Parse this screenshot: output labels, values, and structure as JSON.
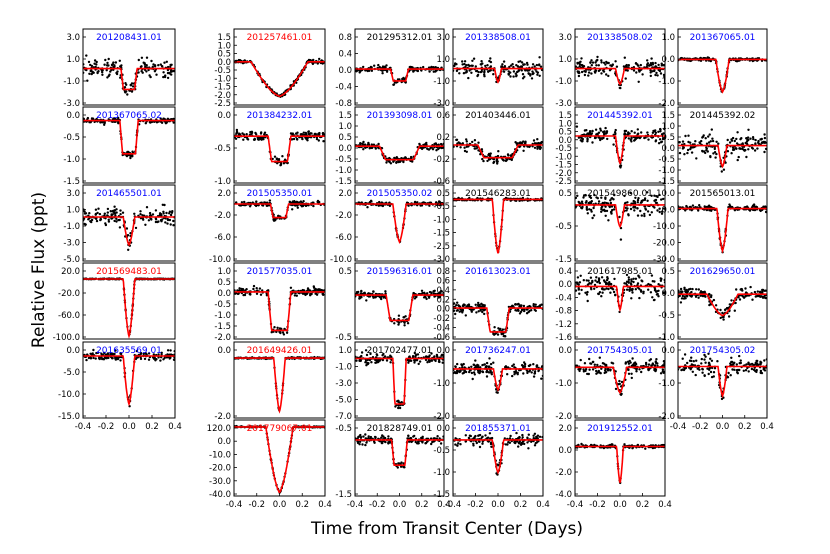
{
  "chart_data": {
    "type": "scatter",
    "xlabel": "Time from Transit Center (Days)",
    "ylabel": "Relative Flux (ppt)",
    "xlim": [
      -0.4,
      0.4
    ],
    "xticks": [
      "-0.4",
      "-0.2",
      "0.0",
      "0.2",
      "0.4"
    ],
    "colors": {
      "model": "#ff0000",
      "points": "#000000",
      "blue": "#0000ff",
      "red": "#ff0000",
      "black": "#000000"
    },
    "columns": [
      [
        {
          "id": "201208431.01",
          "color": "blue",
          "yticks": [
            "3.0",
            "1.0",
            "-1.0",
            "-3.0"
          ],
          "ymin": -3.5,
          "ymax": 3.8,
          "depth": 2.0,
          "w": 0.07,
          "sh": "box",
          "noise": 0.8
        },
        {
          "id": "201367065.02",
          "color": "blue",
          "yticks": [
            "0.0",
            "-0.5",
            "-1.0",
            "-1.5"
          ],
          "ymin": -1.6,
          "ymax": 0.35,
          "depth": 0.85,
          "w": 0.08,
          "sh": "box",
          "noise": 0.07
        },
        {
          "id": "201465501.01",
          "color": "blue",
          "yticks": [
            "3.0",
            "1.0",
            "-1.0",
            "-3.0",
            "-5.0"
          ],
          "ymin": -5.5,
          "ymax": 4.0,
          "depth": 3.5,
          "w": 0.05,
          "sh": "vee",
          "noise": 1.0
        },
        {
          "id": "201569483.01",
          "color": "red",
          "yticks": [
            "20.0",
            "-20.0",
            "-60.0",
            "-100.0"
          ],
          "ymin": -105,
          "ymax": 28,
          "depth": 100,
          "w": 0.05,
          "sh": "vee",
          "noise": 0.6
        },
        {
          "id": "201635569.01",
          "color": "blue",
          "yticks": [
            "0.0",
            "-5.0",
            "-10.0",
            "-15.0"
          ],
          "ymin": -15.5,
          "ymax": 3.5,
          "depth": 12,
          "w": 0.05,
          "sh": "vee",
          "noise": 1.0
        }
      ],
      [
        {
          "id": "201257461.01",
          "color": "red",
          "yticks": [
            "1.5",
            "1.0",
            "0.5",
            "0.0",
            "-0.5",
            "-1.0",
            "-1.5",
            "-2.0",
            "-2.5"
          ],
          "ymin": -2.5,
          "ymax": 1.9,
          "depth": 2.0,
          "w": 0.25,
          "sh": "vee",
          "noise": 0.1
        },
        {
          "id": "201384232.01",
          "color": "blue",
          "yticks": [
            "0.0",
            "-0.5",
            "-1.0"
          ],
          "ymin": -1.2,
          "ymax": 0.75,
          "depth": 0.65,
          "w": 0.1,
          "sh": "box",
          "noise": 0.1
        },
        {
          "id": "201505350.01",
          "color": "blue",
          "yticks": [
            "2.0",
            "-2.0",
            "-6.0",
            "-10.0"
          ],
          "ymin": -10.5,
          "ymax": 3.5,
          "depth": 2.5,
          "w": 0.08,
          "sh": "box",
          "noise": 0.4
        },
        {
          "id": "201577035.01",
          "color": "blue",
          "yticks": [
            "1.0",
            "0.5",
            "0.0",
            "-0.5",
            "-1.0",
            "-1.5",
            "-2.0"
          ],
          "ymin": -2.2,
          "ymax": 1.35,
          "depth": 1.8,
          "w": 0.1,
          "sh": "box",
          "noise": 0.15
        },
        {
          "id": "201649426.01",
          "color": "red",
          "yticks": [
            "0.0",
            "-2.0"
          ],
          "ymin": -2.6,
          "ymax": 0.7,
          "depth": 2.3,
          "w": 0.05,
          "sh": "vee",
          "noise": 0.03
        },
        {
          "id": "201779067.01",
          "color": "red",
          "yticks": [
            "120.0",
            "0.0",
            "-10.0",
            "-20.0",
            "-30.0",
            "-40.0"
          ],
          "ymin": -40,
          "ymax": 4,
          "depth": 38,
          "w": 0.12,
          "sh": "vee",
          "noise": 0.3
        }
      ],
      [
        {
          "id": "201295312.01",
          "color": "black",
          "yticks": [
            "0.8",
            "0.4",
            "0.0",
            "-0.4",
            "-0.8"
          ],
          "ymin": -0.85,
          "ymax": 0.95,
          "depth": 0.28,
          "w": 0.08,
          "sh": "box",
          "noise": 0.06
        },
        {
          "id": "201393098.01",
          "color": "blue",
          "yticks": [
            "1.5",
            "1.0",
            "0.5",
            "0.0",
            "-0.5",
            "-1.0",
            "-1.5"
          ],
          "ymin": -1.5,
          "ymax": 1.6,
          "depth": 0.55,
          "w": 0.18,
          "sh": "box",
          "noise": 0.12
        },
        {
          "id": "201505350.02",
          "color": "blue",
          "yticks": [
            "2.0",
            "-2.0",
            "-6.0",
            "-10.0"
          ],
          "ymin": -10.5,
          "ymax": 3.5,
          "depth": 7,
          "w": 0.06,
          "sh": "vee",
          "noise": 0.3
        },
        {
          "id": "201596316.01",
          "color": "blue",
          "yticks": [
            "0.5",
            "-0.5"
          ],
          "ymin": -1.3,
          "ymax": 0.95,
          "depth": 0.75,
          "w": 0.12,
          "sh": "box",
          "noise": 0.1
        },
        {
          "id": "201702477.01",
          "color": "black",
          "yticks": [
            "1.0",
            "-1.0",
            "-3.0",
            "-5.0",
            "-7.0"
          ],
          "ymin": -7.2,
          "ymax": 2.0,
          "depth": 5.5,
          "w": 0.06,
          "sh": "box",
          "noise": 0.5
        },
        {
          "id": "201828749.01",
          "color": "black",
          "yticks": [
            "-0.5",
            "-1.5"
          ],
          "ymin": -1.55,
          "ymax": 0.55,
          "depth": 0.7,
          "w": 0.07,
          "sh": "box",
          "noise": 0.1
        }
      ],
      [
        {
          "id": "201338508.01",
          "color": "blue",
          "yticks": [
            "3.0",
            "1.0",
            "-1.0",
            "-3.0"
          ],
          "ymin": -3.5,
          "ymax": 3.8,
          "depth": 1.3,
          "w": 0.03,
          "sh": "vee",
          "noise": 0.7
        },
        {
          "id": "201403446.01",
          "color": "black",
          "yticks": [
            "0.6",
            "0.2",
            "-0.2",
            "-0.6"
          ],
          "ymin": -0.75,
          "ymax": 0.75,
          "depth": 0.25,
          "w": 0.18,
          "sh": "box",
          "noise": 0.1
        },
        {
          "id": "201546283.01",
          "color": "black",
          "yticks": [
            "0.5",
            "-0.5",
            "-1.0",
            "-1.5",
            "-2.5",
            "-3.0"
          ],
          "ymin": -3.2,
          "ymax": 0.75,
          "depth": 2.8,
          "w": 0.05,
          "sh": "vee",
          "noise": 0.06
        },
        {
          "id": "201613023.01",
          "color": "blue",
          "yticks": [
            "0.8",
            "0.6",
            "0.4",
            "0.2",
            "0.0",
            "-0.2",
            "-0.4",
            "-0.6"
          ],
          "ymin": -0.65,
          "ymax": 0.95,
          "depth": 0.5,
          "w": 0.1,
          "sh": "box",
          "noise": 0.1
        },
        {
          "id": "201736247.01",
          "color": "blue",
          "yticks": [
            "0.0",
            "-1.0",
            "-2.0"
          ],
          "ymin": -2.1,
          "ymax": 1.15,
          "depth": 0.9,
          "w": 0.04,
          "sh": "vee",
          "noise": 0.25
        },
        {
          "id": "201855371.01",
          "color": "blue",
          "yticks": [
            "0.0",
            "-0.5",
            "-1.0",
            "-1.5"
          ],
          "ymin": -1.55,
          "ymax": 0.55,
          "depth": 0.9,
          "w": 0.05,
          "sh": "vee",
          "noise": 0.15
        }
      ],
      [
        {
          "id": "201338508.02",
          "color": "blue",
          "yticks": [
            "3.0",
            "1.0",
            "-1.0",
            "-3.0"
          ],
          "ymin": -3.5,
          "ymax": 3.8,
          "depth": 1.5,
          "w": 0.04,
          "sh": "vee",
          "noise": 0.7
        },
        {
          "id": "201445392.01",
          "color": "blue",
          "yticks": [
            "1.5",
            "1.0",
            "0.5",
            "0.0",
            "-0.5",
            "-1.0",
            "-1.5",
            "-2.0",
            "-2.5"
          ],
          "ymin": -2.6,
          "ymax": 1.6,
          "depth": 1.5,
          "w": 0.04,
          "sh": "vee",
          "noise": 0.35
        },
        {
          "id": "201549860.01",
          "color": "black",
          "yticks": [
            "0.5",
            "-0.5",
            "-1.5"
          ],
          "ymin": -1.55,
          "ymax": 0.55,
          "depth": 0.6,
          "w": 0.04,
          "sh": "vee",
          "noise": 0.28
        },
        {
          "id": "201617985.01",
          "color": "black",
          "yticks": [
            "0.4",
            "0.0",
            "-0.4",
            "-0.8",
            "-1.2",
            "-1.6"
          ],
          "ymin": -1.8,
          "ymax": 0.8,
          "depth": 0.8,
          "w": 0.03,
          "sh": "vee",
          "noise": 0.35
        },
        {
          "id": "201754305.01",
          "color": "blue",
          "yticks": [
            "0.0",
            "-1.0",
            "-2.0"
          ],
          "ymin": -2.2,
          "ymax": 1.1,
          "depth": 1.1,
          "w": 0.06,
          "sh": "vee",
          "noise": 0.3
        },
        {
          "id": "201912552.01",
          "color": "blue",
          "yticks": [
            "2.0",
            "0.0",
            "-2.0",
            "-4.0"
          ],
          "ymin": -4.1,
          "ymax": 2.2,
          "depth": 3.0,
          "w": 0.03,
          "sh": "vee",
          "noise": 0.12
        }
      ],
      [
        {
          "id": "201367065.01",
          "color": "blue",
          "yticks": [
            "1.0",
            "0.0",
            "-1.0",
            "-2.0"
          ],
          "ymin": -2.1,
          "ymax": 1.4,
          "depth": 1.5,
          "w": 0.06,
          "sh": "vee",
          "noise": 0.06
        },
        {
          "id": "201445392.02",
          "color": "black",
          "yticks": [
            "1.5",
            "1.0",
            "0.5",
            "0.0",
            "-0.5",
            "-1.0",
            "-1.5"
          ],
          "ymin": -1.6,
          "ymax": 1.65,
          "depth": 0.9,
          "w": 0.04,
          "sh": "vee",
          "noise": 0.4
        },
        {
          "id": "201565013.01",
          "color": "black",
          "yticks": [
            "10.0",
            "0.0",
            "-10.0",
            "-20.0",
            "-30.0"
          ],
          "ymin": -31,
          "ymax": 14,
          "depth": 25,
          "w": 0.05,
          "sh": "vee",
          "noise": 1.5
        },
        {
          "id": "201629650.01",
          "color": "blue",
          "yticks": [
            "0.5",
            "0.0",
            "-0.5",
            "-1.0"
          ],
          "ymin": -1.15,
          "ymax": 0.8,
          "depth": 0.55,
          "w": 0.14,
          "sh": "vee",
          "noise": 0.15
        },
        {
          "id": "201754305.02",
          "color": "blue",
          "yticks": [
            "0.0",
            "-1.0",
            "-2.0"
          ],
          "ymin": -2.1,
          "ymax": 1.0,
          "depth": 1.2,
          "w": 0.04,
          "sh": "vee",
          "noise": 0.35
        }
      ]
    ]
  }
}
